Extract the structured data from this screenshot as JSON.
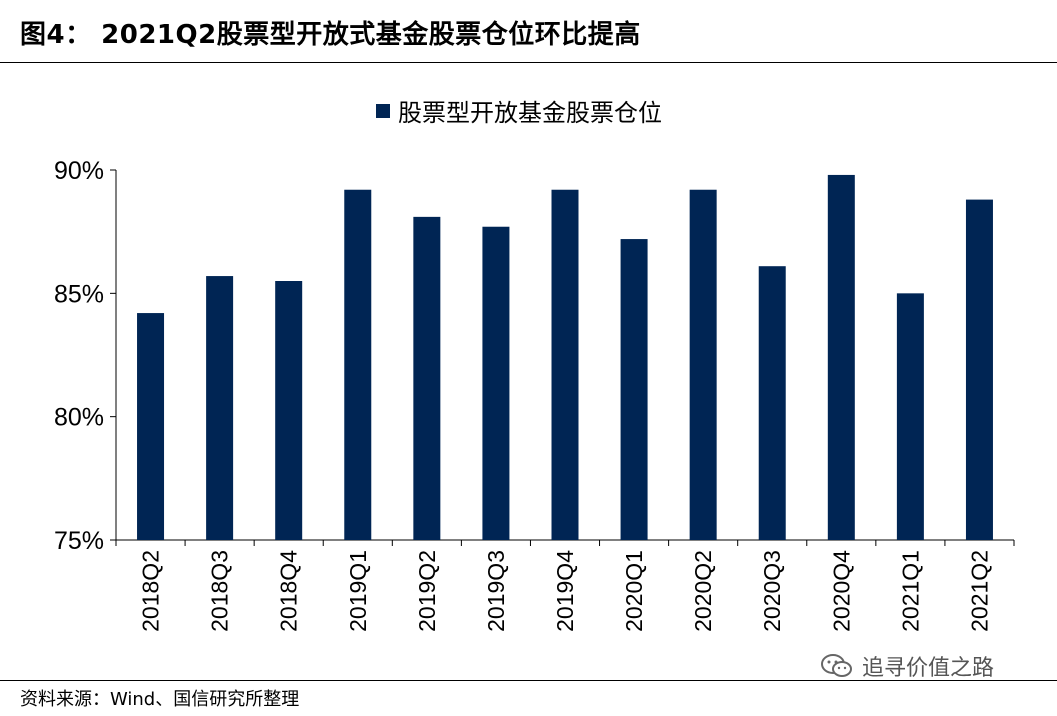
{
  "figure": {
    "title": "图4：  2021Q2股票型开放式基金股票仓位环比提高"
  },
  "chart_data": {
    "type": "bar",
    "categories": [
      "2018Q2",
      "2018Q3",
      "2018Q4",
      "2019Q1",
      "2019Q2",
      "2019Q3",
      "2019Q4",
      "2020Q1",
      "2020Q2",
      "2020Q3",
      "2020Q4",
      "2021Q1",
      "2021Q2"
    ],
    "series": [
      {
        "name": "股票型开放基金股票仓位",
        "values": [
          84.2,
          85.7,
          85.5,
          89.2,
          88.1,
          87.7,
          89.2,
          87.2,
          89.2,
          86.1,
          89.8,
          85.0,
          88.8
        ],
        "color": "#002554"
      }
    ],
    "yticks": [
      "75%",
      "80%",
      "85%",
      "90%"
    ],
    "ylim": [
      75,
      90
    ],
    "grid": false,
    "legend_position": "top-center"
  },
  "footer": {
    "source": "资料来源：Wind、国信研究所整理",
    "watermark": "追寻价值之路"
  }
}
